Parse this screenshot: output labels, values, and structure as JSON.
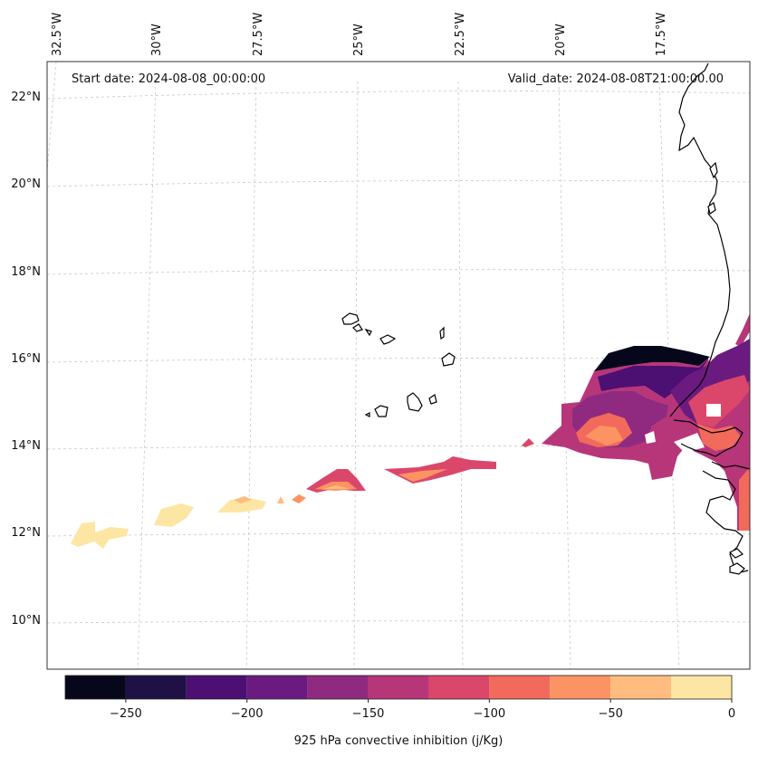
{
  "header": {
    "start_date": "Start date: 2024-08-08_00:00:00",
    "valid_date": "Valid_date: 2024-08-08T21:00:00.00"
  },
  "map": {
    "lon_labels": [
      "32.5°W",
      "30°W",
      "27.5°W",
      "25°W",
      "22.5°W",
      "20°W",
      "17.5°W"
    ],
    "lat_labels": [
      "22°N",
      "20°N",
      "18°N",
      "16°N",
      "14°N",
      "12°N",
      "10°N"
    ],
    "region": "Cape Verde islands and West African coast",
    "variable": "925 hPa convective inhibition"
  },
  "colorbar": {
    "label": "925 hPa convective inhibition (j/Kg)",
    "ticks": [
      "−250",
      "−200",
      "−150",
      "−100",
      "−50",
      "0"
    ],
    "levels": [
      -275,
      -250,
      -225,
      -200,
      -175,
      -150,
      -125,
      -100,
      -75,
      -50,
      -25,
      0
    ],
    "colors": [
      "#07071c",
      "#1f1146",
      "#4c0f72",
      "#6b1b80",
      "#8f2a80",
      "#b7367a",
      "#db476a",
      "#f26a5b",
      "#fc9363",
      "#febc7e",
      "#fde6a3"
    ]
  }
}
